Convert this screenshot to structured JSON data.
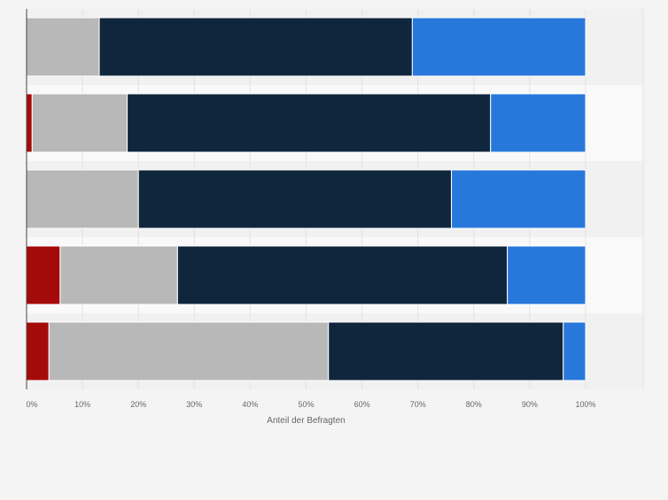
{
  "chart_data": {
    "type": "bar",
    "orientation": "horizontal",
    "stacked": true,
    "title": "",
    "xlabel": "Anteil der Befragten",
    "ylabel": "",
    "xlim": [
      0,
      100
    ],
    "x_ticks": [
      "0%",
      "10%",
      "20%",
      "30%",
      "40%",
      "50%",
      "60%",
      "70%",
      "80%",
      "90%",
      "100%"
    ],
    "categories": [
      "",
      "",
      "",
      "",
      ""
    ],
    "series": [
      {
        "name": "",
        "color": "#a50a0a",
        "values": [
          0,
          1,
          0,
          6,
          4
        ]
      },
      {
        "name": "",
        "color": "#b8b8b8",
        "values": [
          13,
          17,
          20,
          21,
          50
        ]
      },
      {
        "name": "",
        "color": "#10263d",
        "values": [
          56,
          65,
          56,
          59,
          42
        ]
      },
      {
        "name": "",
        "color": "#2878dc",
        "values": [
          31,
          17,
          24,
          14,
          4
        ]
      }
    ],
    "grid": true,
    "legend": "none"
  }
}
